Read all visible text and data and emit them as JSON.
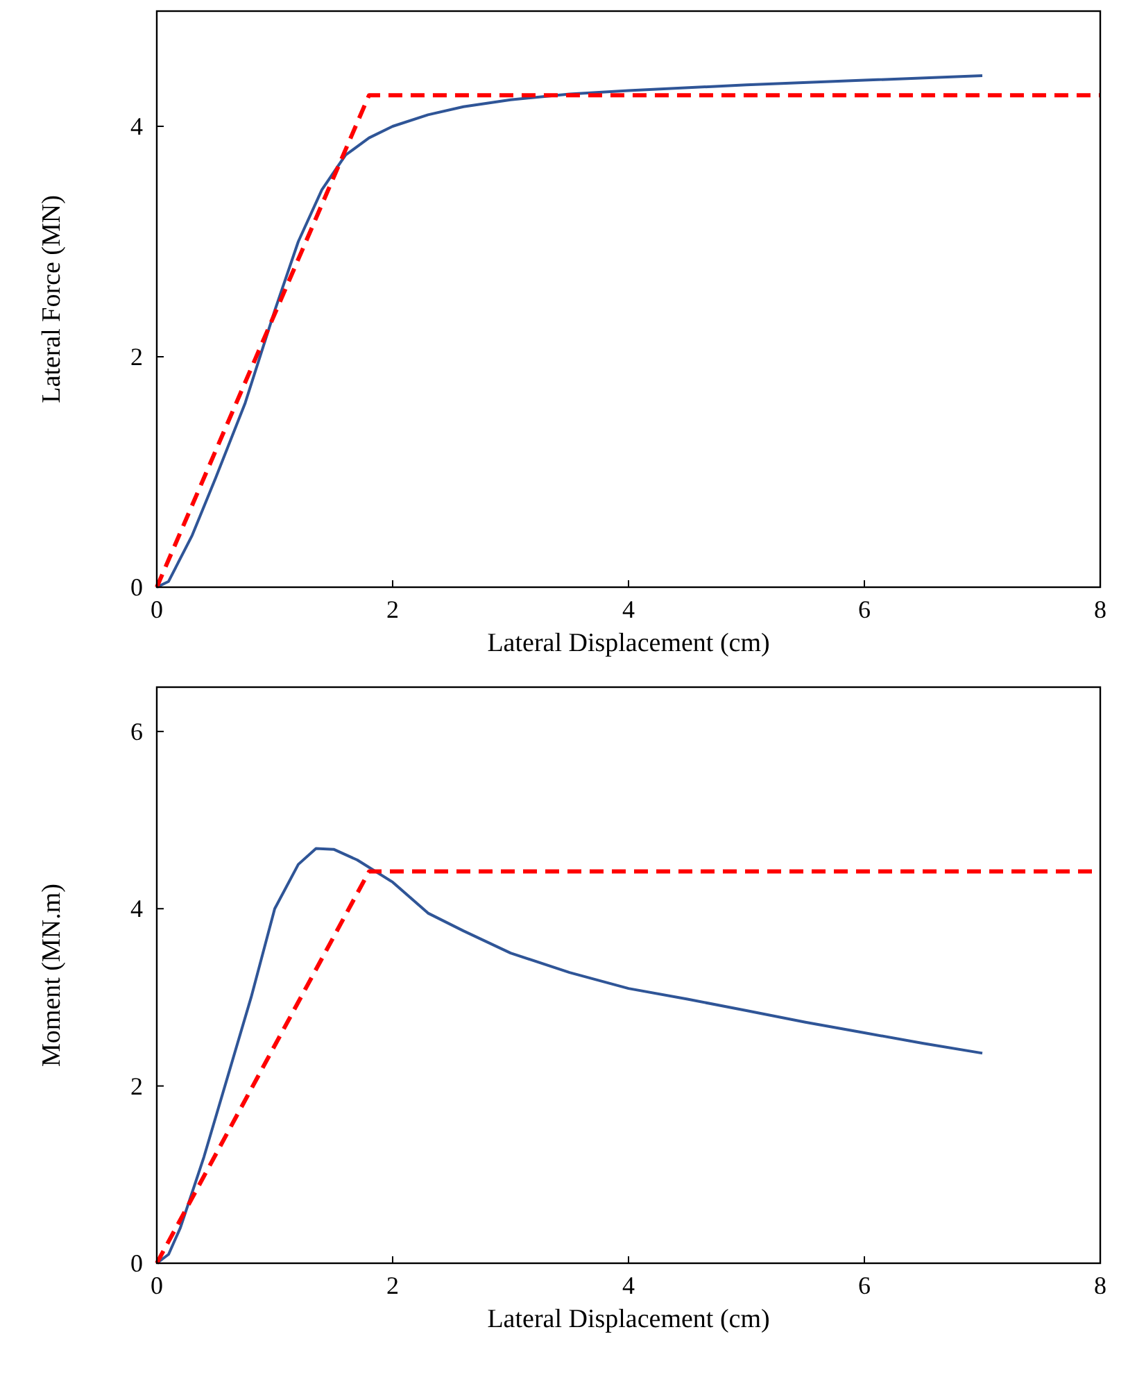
{
  "chart_data": [
    {
      "type": "line",
      "xlabel": "Lateral  Displacement  (cm)",
      "ylabel": "Lateral  Force (MN)",
      "xlim": [
        0,
        8
      ],
      "xticks": [
        0,
        2,
        4,
        6,
        8
      ],
      "ylim": [
        0,
        5
      ],
      "yticks": [
        0,
        2,
        4
      ],
      "marker": "none",
      "series": [
        {
          "color": "#2f5597",
          "line_style": "solid",
          "x": [
            0,
            0.1,
            0.3,
            0.5,
            0.75,
            1.0,
            1.2,
            1.4,
            1.6,
            1.8,
            2.0,
            2.3,
            2.6,
            3,
            3.5,
            4,
            5,
            6,
            7
          ],
          "values": [
            0,
            0.05,
            0.45,
            0.95,
            1.6,
            2.4,
            3.0,
            3.45,
            3.75,
            3.9,
            4.0,
            4.1,
            4.17,
            4.23,
            4.28,
            4.31,
            4.36,
            4.4,
            4.44
          ]
        },
        {
          "color": "#ff0000",
          "line_style": "dashed",
          "x": [
            0,
            1.8,
            8
          ],
          "values": [
            0,
            4.27,
            4.27
          ]
        }
      ]
    },
    {
      "type": "line",
      "xlabel": "Lateral  Displacement  (cm)",
      "ylabel": "Moment  (MN.m)",
      "xlim": [
        0,
        8
      ],
      "xticks": [
        0,
        2,
        4,
        6,
        8
      ],
      "ylim": [
        0,
        6.5
      ],
      "yticks": [
        0,
        2,
        4,
        6
      ],
      "marker": "none",
      "series": [
        {
          "color": "#2f5597",
          "line_style": "solid",
          "x": [
            0,
            0.1,
            0.2,
            0.4,
            0.6,
            0.8,
            1.0,
            1.2,
            1.35,
            1.5,
            1.7,
            2.0,
            2.3,
            2.6,
            3,
            3.5,
            4,
            4.5,
            5,
            5.5,
            6,
            6.5,
            7
          ],
          "values": [
            0,
            0.1,
            0.4,
            1.2,
            2.1,
            3.0,
            4.0,
            4.5,
            4.68,
            4.67,
            4.55,
            4.3,
            3.95,
            3.75,
            3.5,
            3.28,
            3.1,
            2.98,
            2.85,
            2.72,
            2.6,
            2.48,
            2.37
          ]
        },
        {
          "color": "#ff0000",
          "line_style": "dashed",
          "x": [
            0,
            1.8,
            8
          ],
          "values": [
            0,
            4.42,
            4.42
          ]
        }
      ]
    }
  ]
}
